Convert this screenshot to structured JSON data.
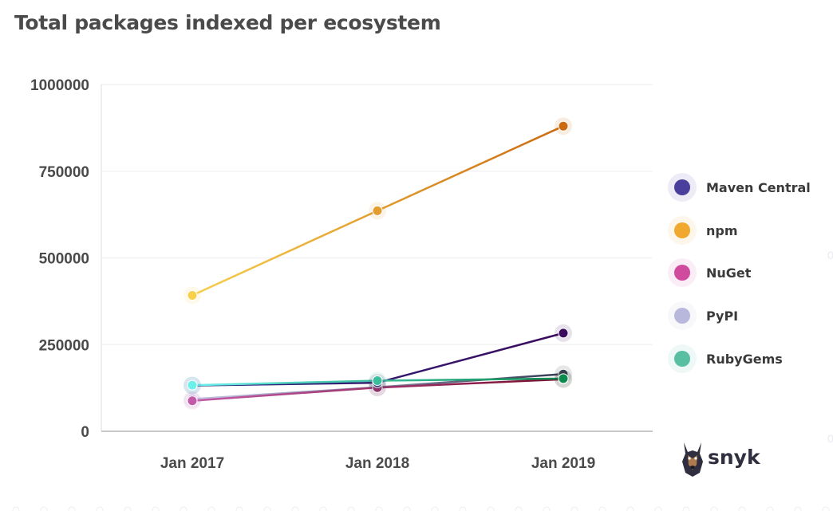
{
  "title": "Total packages indexed per ecosystem",
  "brand": {
    "name": "snyk",
    "icon": "doberman-dog-icon"
  },
  "chart_data": {
    "type": "line",
    "title": "Total packages indexed per ecosystem",
    "xlabel": "",
    "ylabel": "",
    "categories": [
      "Jan 2017",
      "Jan 2018",
      "Jan 2019"
    ],
    "ylim": [
      0,
      1000000
    ],
    "yticks": [
      "0",
      "250000",
      "500000",
      "750000",
      "1000000"
    ],
    "grid": true,
    "legend_position": "right",
    "series": [
      {
        "name": "Maven Central",
        "color": "#4b3f9e",
        "values": [
          132000,
          140000,
          283000
        ]
      },
      {
        "name": "npm",
        "color": "#f0a92e",
        "values": [
          392000,
          636000,
          880000
        ]
      },
      {
        "name": "NuGet",
        "color": "#d04a9e",
        "values": [
          88000,
          126000,
          150000
        ]
      },
      {
        "name": "PyPI",
        "color": "#b8b8dc",
        "values": [
          93000,
          127000,
          165000
        ]
      },
      {
        "name": "RubyGems",
        "color": "#58bfa2",
        "values": [
          133000,
          146000,
          152000
        ]
      }
    ],
    "segment_colors": {
      "Maven Central": [
        "#2e2a80",
        "#3b0a5e"
      ],
      "npm": [
        "#f7d04c",
        "#cc6a10"
      ],
      "NuGet": [
        "#c25aa8",
        "#7a0c2c"
      ],
      "PyPI": [
        "#c8c8e6",
        "#363c55"
      ],
      "RubyGems": [
        "#6cf0ea",
        "#0b8a4e"
      ]
    }
  }
}
